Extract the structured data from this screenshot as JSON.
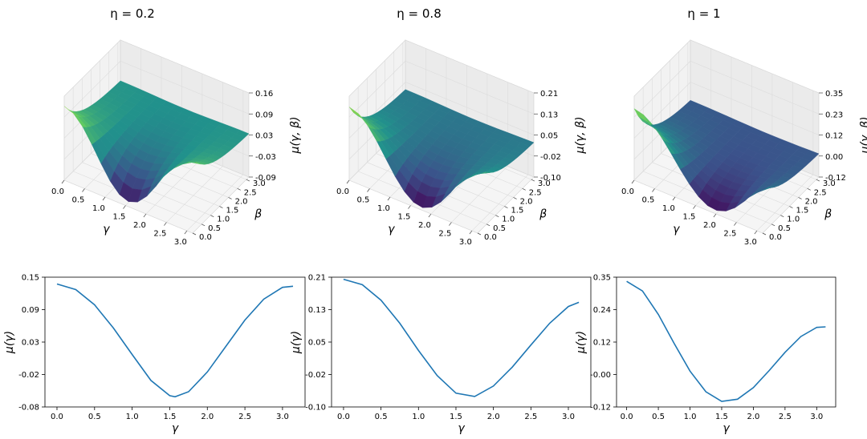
{
  "colormap": "viridis",
  "line_color": "#1f77b4",
  "chart_data": [
    {
      "type": "surface",
      "title": "η = 0.2",
      "xlabel": "γ",
      "ylabel": "β",
      "zlabel": "μ(γ, β)",
      "x_ticks": [
        "0.0",
        "0.5",
        "1.0",
        "1.5",
        "2.0",
        "2.5",
        "3.0"
      ],
      "y_ticks": [
        "0.0",
        "0.5",
        "1.0",
        "1.5",
        "2.0",
        "2.5",
        "3.0"
      ],
      "z_ticks": [
        "-0.09",
        "-0.03",
        "0.03",
        "0.09",
        "0.16"
      ],
      "xlim": [
        0,
        3.14
      ],
      "ylim": [
        0,
        3.14
      ],
      "zlim": [
        -0.09,
        0.16
      ],
      "grid": true
    },
    {
      "type": "surface",
      "title": "η = 0.8",
      "xlabel": "γ",
      "ylabel": "β",
      "zlabel": "μ(γ, β)",
      "x_ticks": [
        "0.0",
        "0.5",
        "1.0",
        "1.5",
        "2.0",
        "2.5",
        "3.0"
      ],
      "y_ticks": [
        "0.0",
        "0.5",
        "1.0",
        "1.5",
        "2.0",
        "2.5",
        "3.0"
      ],
      "z_ticks": [
        "-0.10",
        "-0.02",
        "0.05",
        "0.13",
        "0.21"
      ],
      "xlim": [
        0,
        3.14
      ],
      "ylim": [
        0,
        3.14
      ],
      "zlim": [
        -0.1,
        0.21
      ],
      "grid": true
    },
    {
      "type": "surface",
      "title": "η = 1",
      "xlabel": "γ",
      "ylabel": "β",
      "zlabel": "μ(γ, β)",
      "x_ticks": [
        "0.0",
        "0.5",
        "1.0",
        "1.5",
        "2.0",
        "2.5",
        "3.0"
      ],
      "y_ticks": [
        "0.0",
        "0.5",
        "1.0",
        "1.5",
        "2.0",
        "2.5",
        "3.0"
      ],
      "z_ticks": [
        "-0.12",
        "0.00",
        "0.12",
        "0.23",
        "0.35"
      ],
      "xlim": [
        0,
        3.14
      ],
      "ylim": [
        0,
        3.14
      ],
      "zlim": [
        -0.12,
        0.35
      ],
      "grid": true
    },
    {
      "type": "line",
      "xlabel": "γ",
      "ylabel": "μ(γ)",
      "x_ticks": [
        "0.0",
        "0.5",
        "1.0",
        "1.5",
        "2.0",
        "2.5",
        "3.0"
      ],
      "y_ticks": [
        "-0.08",
        "-0.02",
        "0.03",
        "0.09",
        "0.15"
      ],
      "xlim": [
        -0.16,
        3.3
      ],
      "ylim": [
        -0.08,
        0.15
      ],
      "series": [
        {
          "x": [
            0.0,
            0.25,
            0.5,
            0.75,
            1.0,
            1.25,
            1.5,
            1.571,
            1.75,
            2.0,
            2.25,
            2.5,
            2.75,
            3.0,
            3.14
          ],
          "y": [
            0.138,
            0.128,
            0.101,
            0.06,
            0.013,
            -0.033,
            -0.06,
            -0.062,
            -0.053,
            -0.018,
            0.028,
            0.074,
            0.111,
            0.132,
            0.134
          ]
        }
      ]
    },
    {
      "type": "line",
      "xlabel": "γ",
      "ylabel": "μ(γ)",
      "x_ticks": [
        "0.0",
        "0.5",
        "1.0",
        "1.5",
        "2.0",
        "2.5",
        "3.0"
      ],
      "y_ticks": [
        "-0.10",
        "-0.02",
        "0.05",
        "0.13",
        "0.21"
      ],
      "xlim": [
        -0.16,
        3.3
      ],
      "ylim": [
        -0.1,
        0.21
      ],
      "series": [
        {
          "x": [
            0.0,
            0.25,
            0.5,
            0.75,
            1.0,
            1.25,
            1.5,
            1.75,
            2.0,
            2.25,
            2.5,
            2.75,
            3.0,
            3.14
          ],
          "y": [
            0.205,
            0.192,
            0.155,
            0.1,
            0.035,
            -0.025,
            -0.067,
            -0.075,
            -0.05,
            -0.005,
            0.048,
            0.1,
            0.14,
            0.15
          ]
        }
      ]
    },
    {
      "type": "line",
      "xlabel": "γ",
      "ylabel": "μ(γ)",
      "x_ticks": [
        "0.0",
        "0.5",
        "1.0",
        "1.5",
        "2.0",
        "2.5",
        "3.0"
      ],
      "y_ticks": [
        "-0.12",
        "-0.00",
        "0.12",
        "0.24",
        "0.35"
      ],
      "xlim": [
        -0.16,
        3.3
      ],
      "ylim": [
        -0.12,
        0.35
      ],
      "series": [
        {
          "x": [
            0.0,
            0.25,
            0.5,
            0.75,
            1.0,
            1.25,
            1.5,
            1.75,
            2.0,
            2.25,
            2.5,
            2.75,
            3.0,
            3.14
          ],
          "y": [
            0.335,
            0.3,
            0.215,
            0.11,
            0.01,
            -0.065,
            -0.1,
            -0.092,
            -0.05,
            0.012,
            0.078,
            0.135,
            0.168,
            0.17
          ]
        }
      ]
    }
  ]
}
